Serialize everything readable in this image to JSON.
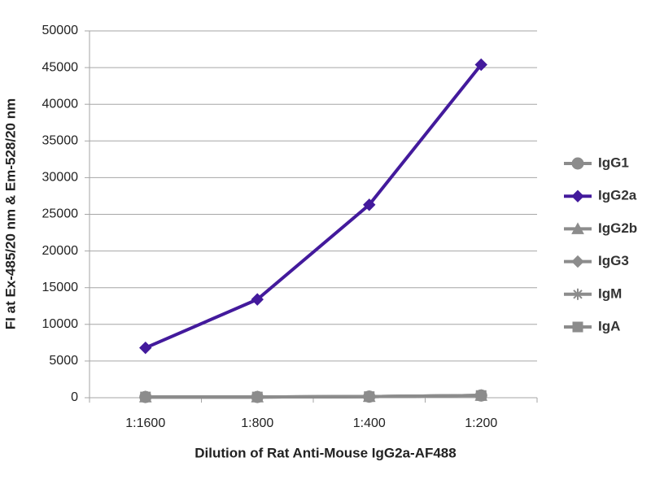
{
  "chart_data": {
    "type": "line",
    "x_label": "Dilution of Rat Anti-Mouse IgG2a-AF488",
    "y_label": "FI at Ex-485/20 nm & Em-528/20 nm",
    "categories": [
      "1:1600",
      "1:800",
      "1:400",
      "1:200"
    ],
    "series": [
      {
        "name": "IgG1",
        "color": "#8c8c8c",
        "marker": "circle",
        "values": [
          100,
          100,
          150,
          300
        ]
      },
      {
        "name": "IgG2a",
        "color": "#431a9c",
        "marker": "diamond",
        "values": [
          6800,
          13400,
          26300,
          45400
        ]
      },
      {
        "name": "IgG2b",
        "color": "#8c8c8c",
        "marker": "triangle",
        "values": [
          100,
          100,
          150,
          300
        ]
      },
      {
        "name": "IgG3",
        "color": "#8c8c8c",
        "marker": "diamond",
        "values": [
          100,
          100,
          150,
          300
        ]
      },
      {
        "name": "IgM",
        "color": "#8c8c8c",
        "marker": "star",
        "values": [
          100,
          100,
          150,
          300
        ]
      },
      {
        "name": "IgA",
        "color": "#8c8c8c",
        "marker": "square",
        "values": [
          100,
          100,
          150,
          300
        ]
      }
    ],
    "ylim": [
      0,
      50000
    ],
    "yticks": [
      0,
      5000,
      10000,
      15000,
      20000,
      25000,
      30000,
      35000,
      40000,
      45000,
      50000
    ],
    "grid": true,
    "legend": "right"
  }
}
